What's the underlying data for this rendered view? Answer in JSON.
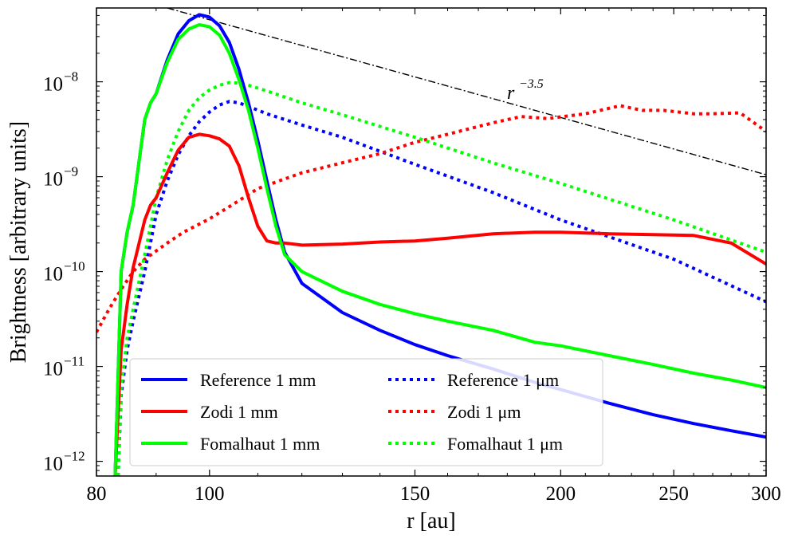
{
  "chart_data": {
    "type": "line",
    "xlabel": "r [au]",
    "ylabel": "Brightness [arbitrary units]",
    "xscale": "log",
    "yscale": "log",
    "xlim": [
      80,
      300
    ],
    "ylim": [
      7e-13,
      6e-08
    ],
    "xticks": [
      {
        "value": 80,
        "label": "80"
      },
      {
        "value": 100,
        "label": "100"
      },
      {
        "value": 150,
        "label": "150"
      },
      {
        "value": 200,
        "label": "200"
      },
      {
        "value": 250,
        "label": "250"
      },
      {
        "value": 300,
        "label": "300"
      }
    ],
    "yticks": [
      {
        "value": 1e-12,
        "base": "10",
        "exp": "−12"
      },
      {
        "value": 1e-11,
        "base": "10",
        "exp": "−11"
      },
      {
        "value": 1e-10,
        "base": "10",
        "exp": "−10"
      },
      {
        "value": 1e-09,
        "base": "10",
        "exp": "−9"
      },
      {
        "value": 1e-08,
        "base": "10",
        "exp": "−8"
      }
    ],
    "legend_position": "lower-left",
    "grid": false,
    "series": [
      {
        "name": "Reference 1 mm",
        "color": "#0000ff",
        "style": "solid",
        "x": [
          83,
          84,
          85,
          86,
          88,
          89,
          90,
          92,
          94,
          96,
          98,
          100,
          102,
          104,
          106,
          108,
          110,
          112,
          114,
          116,
          120,
          130,
          140,
          150,
          160,
          175,
          190,
          200,
          220,
          240,
          260,
          280,
          300
        ],
        "y": [
          7e-13,
          1e-10,
          2.6e-10,
          5e-10,
          4e-09,
          6e-09,
          7.5e-09,
          1.7e-08,
          3.2e-08,
          4.4e-08,
          5.1e-08,
          4.8e-08,
          3.9e-08,
          2.6e-08,
          1.35e-08,
          6e-09,
          2.4e-09,
          9e-10,
          3.5e-10,
          1.6e-10,
          7.5e-11,
          3.7e-11,
          2.4e-11,
          1.7e-11,
          1.3e-11,
          9.4e-12,
          6.8e-12,
          5.7e-12,
          4.1e-12,
          3.1e-12,
          2.5e-12,
          2.1e-12,
          1.8e-12
        ]
      },
      {
        "name": "Zodi 1 mm",
        "color": "#ff0000",
        "style": "solid",
        "x": [
          83,
          84,
          85,
          86,
          88,
          89,
          90,
          92,
          94,
          96,
          98,
          100,
          102,
          104,
          106,
          108,
          110,
          112,
          114,
          116,
          120,
          130,
          140,
          150,
          160,
          175,
          190,
          200,
          220,
          240,
          260,
          280,
          300
        ],
        "y": [
          7e-13,
          1.5e-11,
          4.5e-11,
          1.1e-10,
          3.5e-10,
          5e-10,
          6e-10,
          1.1e-09,
          1.9e-09,
          2.6e-09,
          2.8e-09,
          2.7e-09,
          2.5e-09,
          2.1e-09,
          1.3e-09,
          6e-10,
          3e-10,
          2.1e-10,
          2e-10,
          2e-10,
          1.9e-10,
          1.95e-10,
          2.05e-10,
          2.1e-10,
          2.25e-10,
          2.5e-10,
          2.6e-10,
          2.6e-10,
          2.5e-10,
          2.45e-10,
          2.4e-10,
          2e-10,
          1.2e-10
        ]
      },
      {
        "name": "Fomalhaut 1 mm",
        "color": "#00ff00",
        "style": "solid",
        "x": [
          83,
          84,
          85,
          86,
          88,
          89,
          90,
          92,
          94,
          96,
          98,
          100,
          102,
          104,
          106,
          108,
          110,
          112,
          114,
          116,
          120,
          130,
          140,
          150,
          160,
          175,
          190,
          200,
          220,
          240,
          260,
          280,
          300
        ],
        "y": [
          7e-13,
          1e-10,
          2.6e-10,
          5e-10,
          4e-09,
          6e-09,
          7.5e-09,
          1.6e-08,
          2.8e-08,
          3.6e-08,
          4e-08,
          3.8e-08,
          3.1e-08,
          2e-08,
          1.05e-08,
          5e-09,
          2e-09,
          7.5e-10,
          3e-10,
          1.5e-10,
          1e-10,
          6.2e-11,
          4.5e-11,
          3.6e-11,
          3e-11,
          2.4e-11,
          1.8e-11,
          1.65e-11,
          1.3e-11,
          1.05e-11,
          8.5e-12,
          7.2e-12,
          6e-12
        ]
      },
      {
        "name": "Reference 1 μm",
        "color": "#0000ff",
        "style": "dotted",
        "x": [
          83.5,
          84,
          85,
          86,
          88,
          90,
          92,
          94,
          96,
          98,
          100,
          102,
          104,
          106,
          108,
          112,
          120,
          130,
          150,
          175,
          200,
          250,
          300
        ],
        "y": [
          7e-13,
          5e-12,
          1.5e-11,
          3e-11,
          1e-10,
          4e-10,
          9e-10,
          1.7e-09,
          2.7e-09,
          3.8e-09,
          4.8e-09,
          5.7e-09,
          6.2e-09,
          6e-09,
          5.5e-09,
          4.6e-09,
          3.5e-09,
          2.6e-09,
          1.35e-09,
          6.8e-10,
          3.5e-10,
          1.35e-10,
          4.8e-11
        ]
      },
      {
        "name": "Zodi 1 μm",
        "color": "#ff0000",
        "style": "dotted",
        "x": [
          80,
          82,
          84,
          86,
          88,
          90,
          92,
          95,
          100,
          105,
          110,
          120,
          130,
          140,
          150,
          160,
          175,
          185,
          195,
          210,
          225,
          235,
          245,
          260,
          270,
          285,
          300
        ],
        "y": [
          2.3e-11,
          4e-11,
          6.5e-11,
          1e-10,
          1.35e-10,
          1.65e-10,
          2e-10,
          2.6e-10,
          3.6e-10,
          5.2e-10,
          7.5e-10,
          1.1e-09,
          1.4e-09,
          1.75e-09,
          2.3e-09,
          2.8e-09,
          3.7e-09,
          4.3e-09,
          4.1e-09,
          4.6e-09,
          5.6e-09,
          5e-09,
          5e-09,
          4.6e-09,
          4.6e-09,
          4.7e-09,
          3e-09
        ]
      },
      {
        "name": "Fomalhaut 1 μm",
        "color": "#00ff00",
        "style": "dotted",
        "x": [
          83.5,
          84,
          85,
          86,
          88,
          90,
          92,
          94,
          96,
          98,
          100,
          102,
          104,
          106,
          108,
          112,
          120,
          130,
          150,
          175,
          200,
          250,
          300
        ],
        "y": [
          7e-13,
          6e-12,
          2e-11,
          4e-11,
          1.5e-10,
          6e-10,
          1.5e-09,
          3e-09,
          5e-09,
          6.8e-09,
          8.2e-09,
          9.2e-09,
          9.8e-09,
          9.7e-09,
          9.2e-09,
          8e-09,
          6e-09,
          4.5e-09,
          2.6e-09,
          1.4e-09,
          8.5e-10,
          3.5e-10,
          1.6e-10
        ]
      }
    ],
    "reference_line": {
      "label_base": "r",
      "label_exp": "−3.5",
      "color": "#000000",
      "style": "dashdot",
      "x": [
        92,
        300
      ],
      "y": [
        6e-08,
        1.05e-09
      ]
    }
  }
}
